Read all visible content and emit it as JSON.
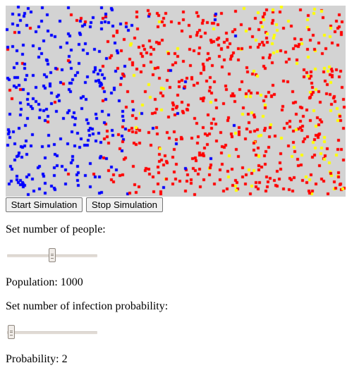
{
  "simulation": {
    "background_color": "#d3d3d3",
    "colors": {
      "blue": "#0000ff",
      "red": "#ff0000",
      "yellow": "#ffff00"
    }
  },
  "controls": {
    "start_label": "Start Simulation",
    "stop_label": "Stop Simulation"
  },
  "population": {
    "prompt": "Set number of people:",
    "slider_level": 0.5,
    "display_label": "Population:",
    "value": "1000"
  },
  "probability": {
    "prompt": "Set number of infection probability:",
    "slider_level": 0.0,
    "display_label": "Probability:",
    "value": "2"
  }
}
